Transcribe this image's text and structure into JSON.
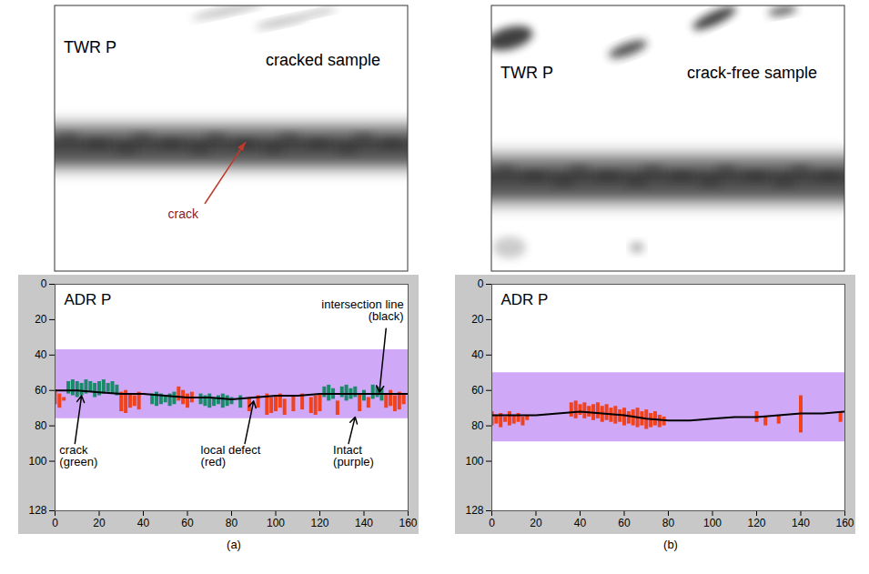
{
  "panel_labels": [
    "(a)",
    "(b)"
  ],
  "images": [
    {
      "title": "TWR P",
      "subtitle": "cracked sample",
      "annotation": "crack"
    },
    {
      "title": "TWR P",
      "subtitle": "crack-free sample"
    }
  ],
  "chart_data": [
    {
      "type": "line",
      "title": "ADR P",
      "xlim": [
        0,
        160
      ],
      "xticks": [
        0,
        20,
        40,
        60,
        80,
        100,
        120,
        140,
        160
      ],
      "ylim": [
        0,
        128
      ],
      "yticks": [
        0,
        20,
        40,
        60,
        80,
        100,
        128
      ],
      "series": [
        {
          "name": "Intact (purple)",
          "type": "band",
          "color": "#cfa8f7",
          "x": [
            0,
            160
          ],
          "low": [
            37,
            37
          ],
          "high": [
            76,
            76
          ]
        },
        {
          "name": "crack (green)",
          "type": "range",
          "color": "#1b8a6b",
          "x": [
            6,
            8,
            10,
            12,
            14,
            16,
            18,
            20,
            22,
            24,
            26,
            28,
            44,
            46,
            48,
            50,
            52,
            54,
            66,
            68,
            70,
            72,
            74,
            76,
            78,
            80,
            84,
            122,
            124,
            126,
            130,
            132,
            134,
            136,
            140,
            144,
            146,
            148
          ],
          "low": [
            55,
            54,
            55,
            56,
            54,
            55,
            56,
            55,
            54,
            56,
            55,
            57,
            62,
            61,
            62,
            63,
            62,
            61,
            62,
            63,
            62,
            64,
            63,
            62,
            63,
            64,
            63,
            58,
            57,
            59,
            58,
            57,
            59,
            58,
            60,
            57,
            58,
            59
          ],
          "high": [
            62,
            63,
            64,
            63,
            62,
            61,
            64,
            63,
            62,
            61,
            62,
            63,
            68,
            69,
            68,
            67,
            69,
            68,
            68,
            69,
            70,
            69,
            68,
            70,
            69,
            68,
            70,
            64,
            66,
            65,
            64,
            66,
            65,
            64,
            66,
            65,
            64,
            66
          ]
        },
        {
          "name": "local defect (red)",
          "type": "range",
          "color": "#f0421c",
          "x": [
            0,
            2,
            4,
            30,
            32,
            34,
            36,
            38,
            56,
            58,
            60,
            62,
            88,
            92,
            96,
            98,
            100,
            102,
            104,
            108,
            112,
            116,
            118,
            120,
            128,
            138,
            142,
            150,
            152,
            154,
            156,
            158
          ],
          "low": [
            60,
            62,
            64,
            61,
            60,
            62,
            63,
            61,
            58,
            60,
            62,
            61,
            64,
            63,
            62,
            64,
            63,
            62,
            65,
            63,
            62,
            64,
            63,
            62,
            66,
            62,
            64,
            62,
            60,
            63,
            61,
            62
          ],
          "high": [
            68,
            70,
            66,
            72,
            73,
            70,
            69,
            71,
            66,
            68,
            70,
            67,
            72,
            70,
            74,
            73,
            72,
            70,
            74,
            72,
            71,
            73,
            74,
            72,
            74,
            72,
            70,
            70,
            69,
            72,
            71,
            68
          ]
        },
        {
          "name": "intersection line (black)",
          "type": "line",
          "color": "#000000",
          "x": [
            0,
            10,
            20,
            30,
            40,
            50,
            60,
            70,
            80,
            90,
            100,
            110,
            120,
            130,
            140,
            150,
            160
          ],
          "values": [
            60,
            60,
            61,
            62,
            62,
            63,
            64,
            64,
            65,
            64,
            63,
            63,
            62,
            62,
            62,
            62,
            62
          ]
        }
      ]
    },
    {
      "type": "line",
      "title": "ADR P",
      "xlim": [
        0,
        160
      ],
      "xticks": [
        0,
        20,
        40,
        60,
        80,
        100,
        120,
        140,
        160
      ],
      "ylim": [
        0,
        128
      ],
      "yticks": [
        0,
        20,
        40,
        60,
        80,
        100,
        128
      ],
      "series": [
        {
          "type": "band",
          "color": "#cfa8f7",
          "x": [
            0,
            160
          ],
          "low": [
            50,
            50
          ],
          "high": [
            89,
            89
          ]
        },
        {
          "type": "range",
          "color": "#f0421c",
          "x": [
            0,
            2,
            4,
            6,
            8,
            10,
            12,
            14,
            16,
            36,
            38,
            40,
            42,
            44,
            46,
            48,
            50,
            52,
            54,
            56,
            58,
            60,
            62,
            64,
            66,
            68,
            70,
            72,
            74,
            76,
            78,
            120,
            124,
            130,
            140,
            158
          ],
          "low": [
            72,
            74,
            73,
            75,
            72,
            74,
            73,
            75,
            74,
            67,
            66,
            68,
            67,
            69,
            68,
            67,
            69,
            68,
            70,
            69,
            71,
            70,
            72,
            71,
            70,
            72,
            71,
            73,
            72,
            74,
            75,
            72,
            75,
            74,
            63,
            72
          ],
          "high": [
            80,
            79,
            81,
            78,
            80,
            79,
            78,
            80,
            77,
            75,
            76,
            74,
            76,
            75,
            77,
            76,
            78,
            77,
            78,
            79,
            78,
            80,
            79,
            80,
            81,
            80,
            82,
            81,
            80,
            81,
            80,
            78,
            80,
            79,
            84,
            78
          ]
        },
        {
          "type": "line",
          "color": "#000000",
          "x": [
            0,
            10,
            20,
            30,
            40,
            50,
            60,
            70,
            80,
            90,
            100,
            110,
            120,
            130,
            140,
            150,
            160
          ],
          "values": [
            74,
            74,
            74,
            73,
            72,
            73,
            74,
            76,
            77,
            77,
            76,
            75,
            75,
            74,
            73,
            73,
            72
          ]
        }
      ]
    }
  ]
}
